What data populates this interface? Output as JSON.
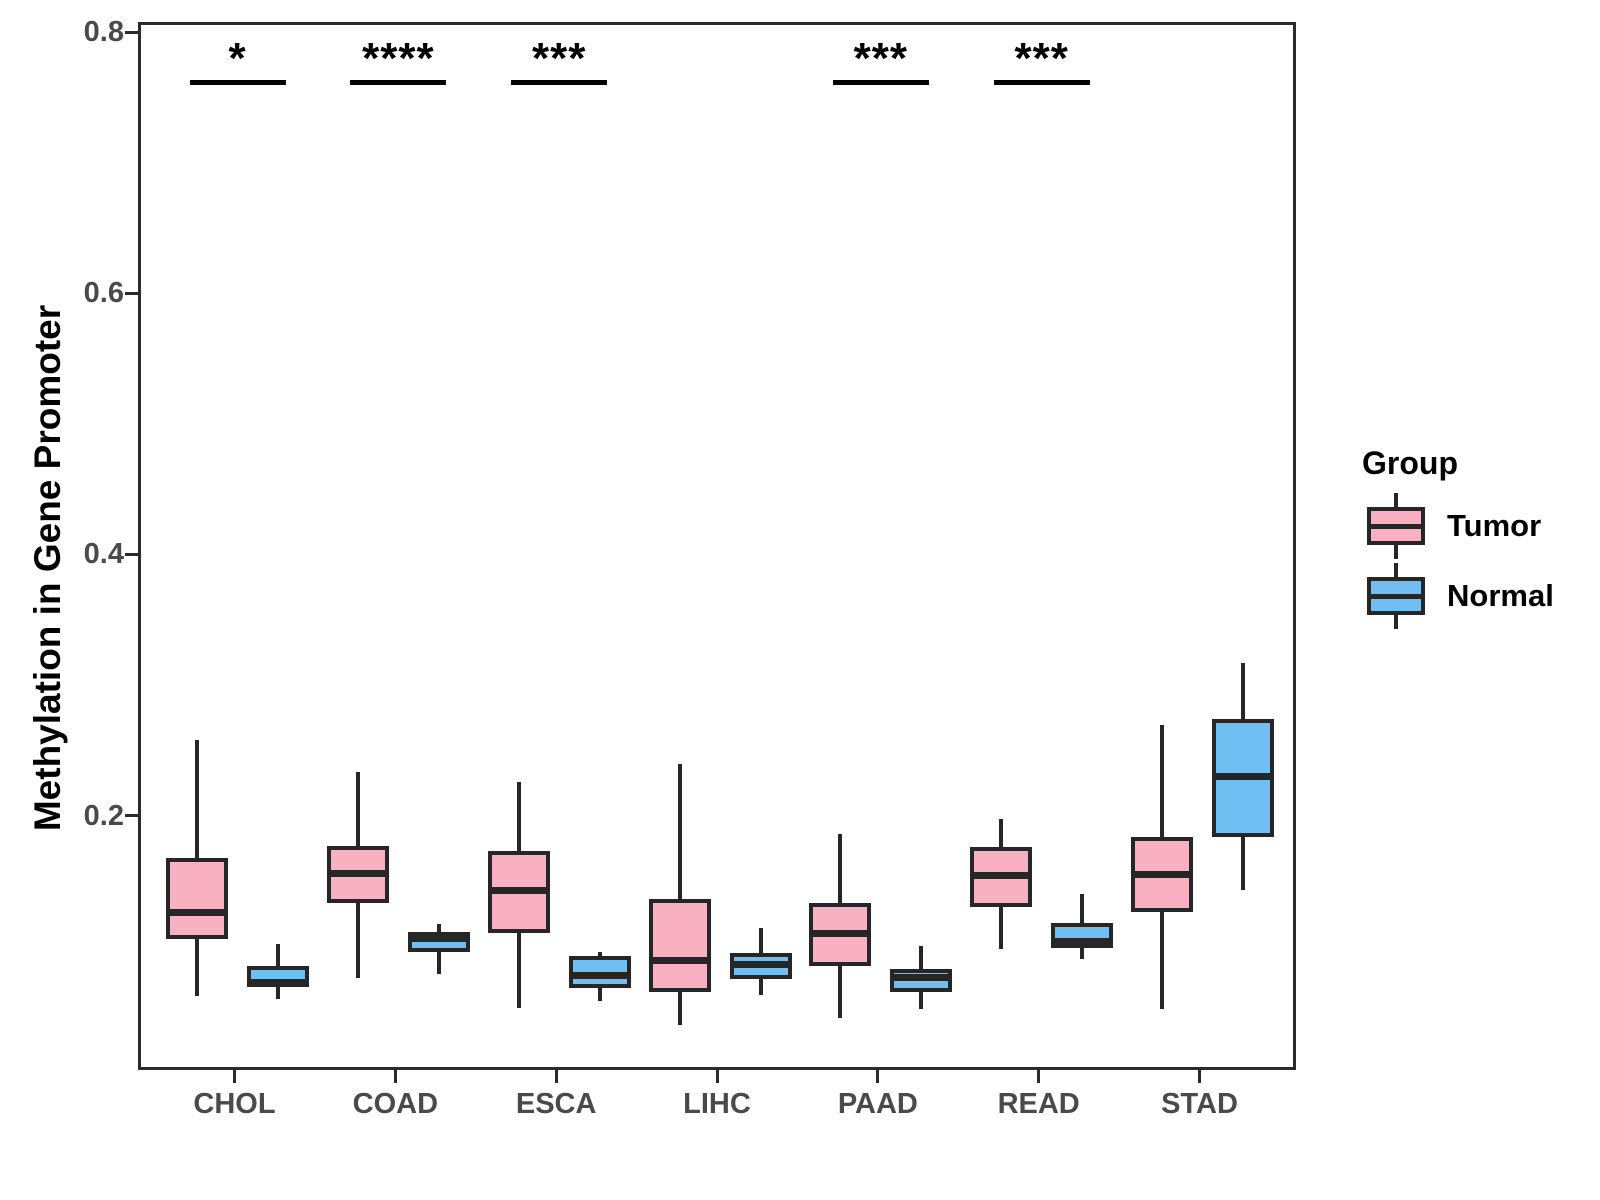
{
  "chart_data": {
    "type": "boxplot",
    "title": "",
    "xlabel": "",
    "ylabel": "Methylation in Gene Promoter",
    "categories": [
      "CHOL",
      "COAD",
      "ESCA",
      "LIHC",
      "PAAD",
      "READ",
      "STAD"
    ],
    "y_ticks": [
      {
        "label": "0.8",
        "value": 0.8
      },
      {
        "label": "0.6",
        "value": 0.6
      },
      {
        "label": "0.4",
        "value": 0.4
      },
      {
        "label": "0.2",
        "value": 0.2
      }
    ],
    "ylim": [
      0.005,
      0.808
    ],
    "grid": false,
    "legend_position": "right",
    "significance": [
      "*",
      "****",
      "***",
      null,
      "***",
      "***",
      null
    ],
    "significance_bar_y": 0.766,
    "series": [
      {
        "name": "Tumor",
        "color": "#f9b1c2",
        "boxes": [
          {
            "category": "CHOL",
            "whisker_low": 0.064,
            "q1": 0.108,
            "median": 0.128,
            "q3": 0.17,
            "whisker_high": 0.26
          },
          {
            "category": "COAD",
            "whisker_low": 0.078,
            "q1": 0.135,
            "median": 0.158,
            "q3": 0.179,
            "whisker_high": 0.236
          },
          {
            "category": "ESCA",
            "whisker_low": 0.055,
            "q1": 0.112,
            "median": 0.145,
            "q3": 0.175,
            "whisker_high": 0.228
          },
          {
            "category": "LIHC",
            "whisker_low": 0.042,
            "q1": 0.067,
            "median": 0.091,
            "q3": 0.138,
            "whisker_high": 0.242
          },
          {
            "category": "PAAD",
            "whisker_low": 0.047,
            "q1": 0.087,
            "median": 0.112,
            "q3": 0.135,
            "whisker_high": 0.188
          },
          {
            "category": "READ",
            "whisker_low": 0.1,
            "q1": 0.132,
            "median": 0.156,
            "q3": 0.178,
            "whisker_high": 0.2
          },
          {
            "category": "STAD",
            "whisker_low": 0.054,
            "q1": 0.128,
            "median": 0.157,
            "q3": 0.186,
            "whisker_high": 0.272
          }
        ]
      },
      {
        "name": "Normal",
        "color": "#70bff2",
        "boxes": [
          {
            "category": "CHOL",
            "whisker_low": 0.062,
            "q1": 0.071,
            "median": 0.074,
            "q3": 0.087,
            "whisker_high": 0.104
          },
          {
            "category": "COAD",
            "whisker_low": 0.081,
            "q1": 0.098,
            "median": 0.108,
            "q3": 0.113,
            "whisker_high": 0.119
          },
          {
            "category": "ESCA",
            "whisker_low": 0.06,
            "q1": 0.07,
            "median": 0.08,
            "q3": 0.095,
            "whisker_high": 0.098
          },
          {
            "category": "LIHC",
            "whisker_low": 0.065,
            "q1": 0.077,
            "median": 0.088,
            "q3": 0.097,
            "whisker_high": 0.116
          },
          {
            "category": "PAAD",
            "whisker_low": 0.054,
            "q1": 0.067,
            "median": 0.078,
            "q3": 0.085,
            "whisker_high": 0.102
          },
          {
            "category": "READ",
            "whisker_low": 0.092,
            "q1": 0.101,
            "median": 0.106,
            "q3": 0.12,
            "whisker_high": 0.142
          },
          {
            "category": "STAD",
            "whisker_low": 0.145,
            "q1": 0.186,
            "median": 0.232,
            "q3": 0.276,
            "whisker_high": 0.319
          }
        ]
      }
    ]
  },
  "legend": {
    "title": "Group",
    "items": [
      {
        "label": "Tumor",
        "color": "#f9b1c2"
      },
      {
        "label": "Normal",
        "color": "#70bff2"
      }
    ]
  },
  "styles": {
    "box_stroke": "#262626",
    "axis_color": "#2b2b2b",
    "tick_label_color": "#4a4a4a"
  }
}
